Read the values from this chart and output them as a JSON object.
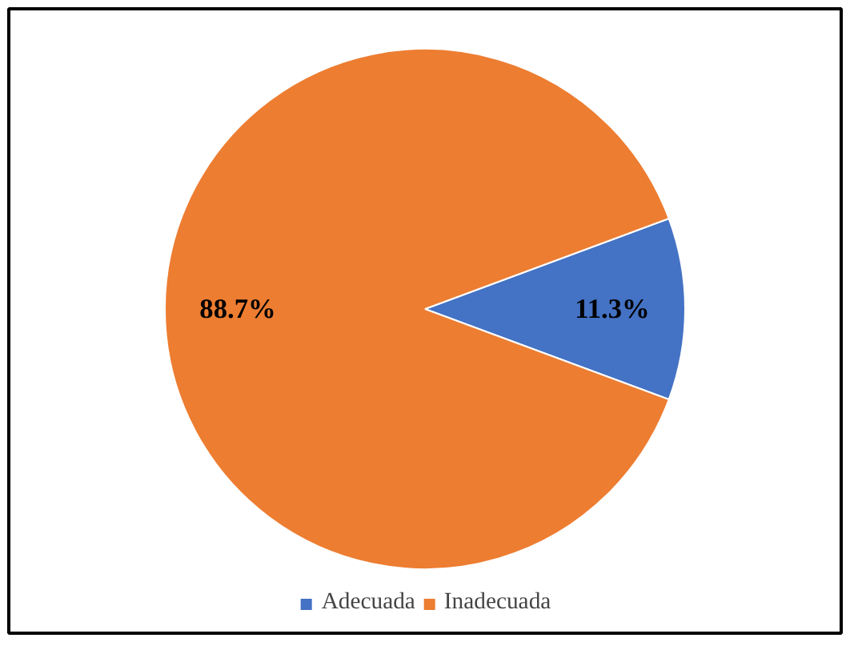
{
  "chart_data": {
    "type": "pie",
    "categories": [
      "Adecuada",
      "Inadecuada"
    ],
    "values": [
      11.3,
      88.7
    ],
    "colors": [
      "#4472c4",
      "#ed7d31"
    ],
    "value_labels": [
      "11.3%",
      "88.7%"
    ],
    "legend": "bottom"
  }
}
